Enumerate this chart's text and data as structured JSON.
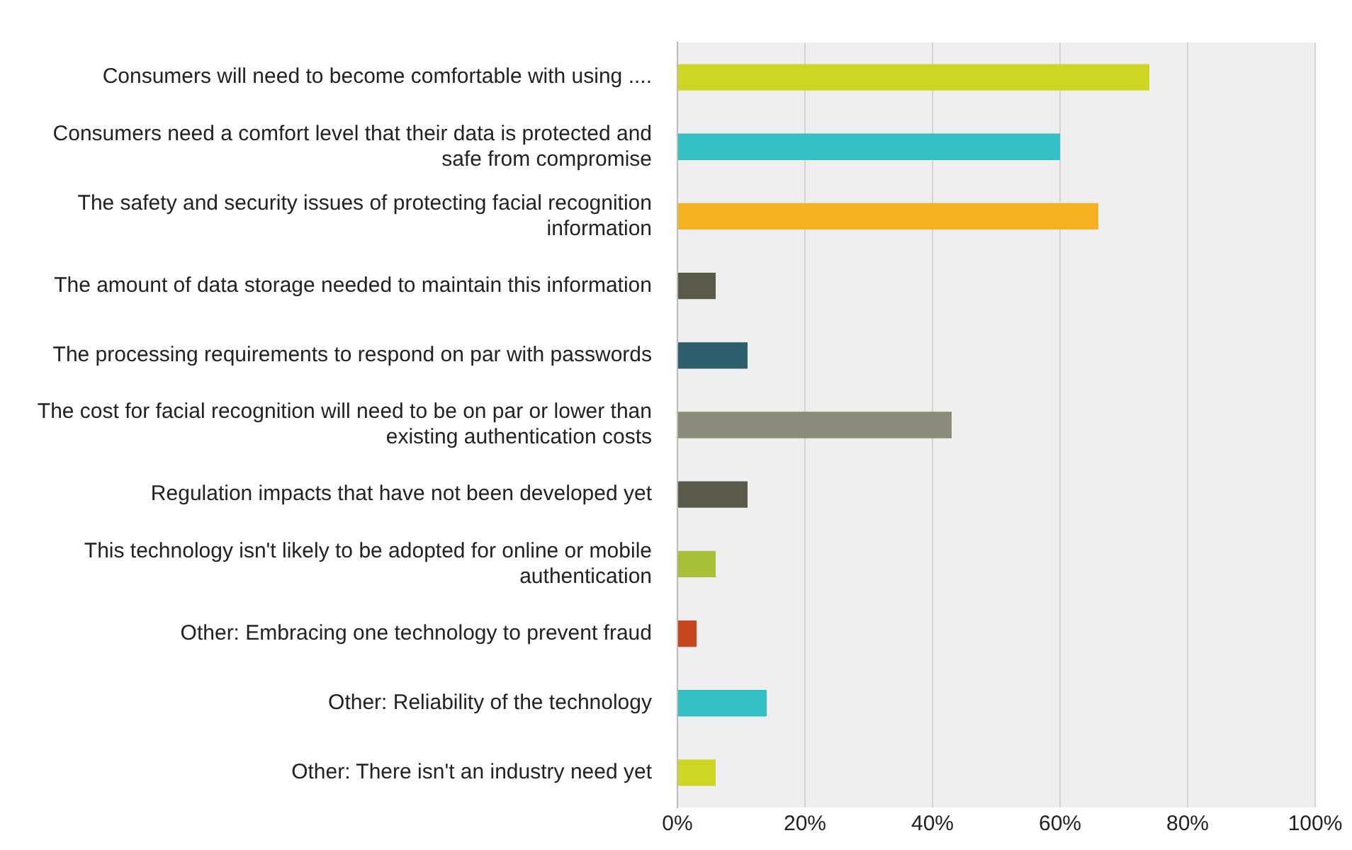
{
  "chart_data": {
    "type": "bar",
    "orientation": "horizontal",
    "categories": [
      "Consumers will need to become comfortable with using ....",
      "Consumers need a comfort level that their data is protected and safe from compromise",
      "The safety and security issues of protecting facial recognition information",
      "The amount of data storage needed to maintain this information",
      "The processing requirements to respond on par with passwords",
      "The cost for facial recognition will need to be on par or lower than existing authentication costs",
      "Regulation impacts that have not been developed yet",
      "This technology isn't likely to be adopted for online or mobile authentication",
      "Other: Embracing one technology to prevent fraud",
      "Other: Reliability of the technology",
      "Other: There isn't an industry need yet"
    ],
    "values": [
      74,
      60,
      66,
      6,
      11,
      43,
      11,
      6,
      3,
      14,
      6
    ],
    "colors": [
      "#cdd625",
      "#33bfc4",
      "#f5b223",
      "#595a4a",
      "#2e5f6e",
      "#8b8b7c",
      "#595a4a",
      "#a8bf3a",
      "#c8461f",
      "#33bfc4",
      "#cdd625"
    ],
    "xlim": [
      0,
      100
    ],
    "xticks": [
      {
        "value": 0,
        "label": "0%"
      },
      {
        "value": 20,
        "label": "20%"
      },
      {
        "value": 40,
        "label": "40%"
      },
      {
        "value": 60,
        "label": "60%"
      },
      {
        "value": 80,
        "label": "80%"
      },
      {
        "value": 100,
        "label": "100%"
      }
    ],
    "grid": "x",
    "legend": false
  }
}
